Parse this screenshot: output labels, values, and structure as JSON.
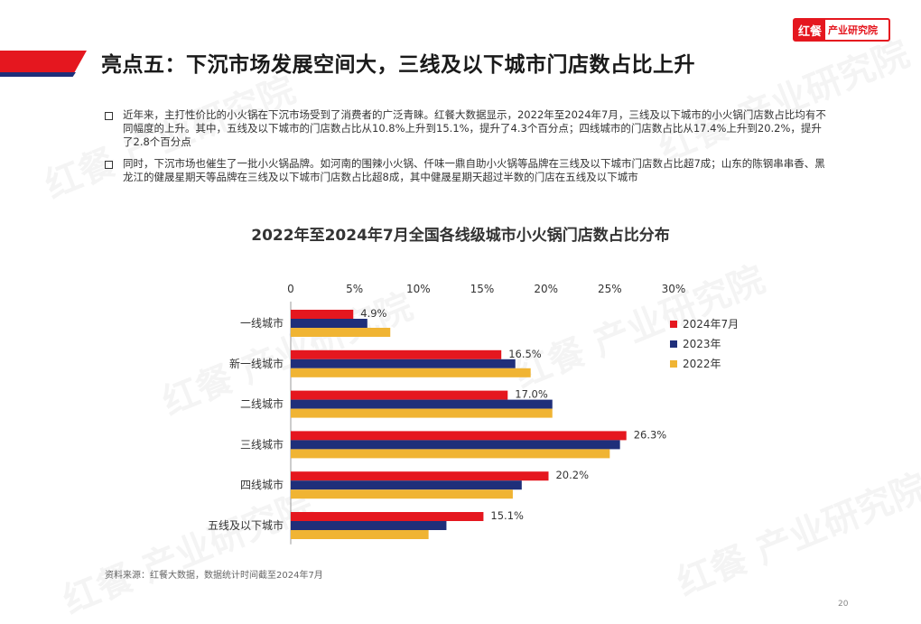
{
  "headline": "亮点五：下沉市场发展空间大，三线及以下城市门店数占比上升",
  "logo": {
    "mark": "红餐",
    "text": "产业研究院"
  },
  "watermark": "红餐 产业研究院",
  "bullets": [
    "近年来，主打性价比的小火锅在下沉市场受到了消费者的广泛青睐。红餐大数据显示，2022年至2024年7月，三线及以下城市的小火锅门店数占比均有不同幅度的上升。其中，五线及以下城市的门店数占比从10.8%上升到15.1%，提升了4.3个百分点；四线城市的门店数占比从17.4%上升到20.2%，提升了2.8个百分点",
    "同时，下沉市场也催生了一批小火锅品牌。如河南的围辣小火锅、仟味一鼎自助小火锅等品牌在三线及以下城市门店数占比超7成；山东的陈钢串串香、黑龙江的健晟星期天等品牌在三线及以下城市门店数占比超8成，其中健晟星期天超过半数的门店在五线及以下城市"
  ],
  "source": "资料来源：红餐大数据，数据统计时间截至2024年7月",
  "page_number": "20",
  "chart_data": {
    "type": "bar",
    "orientation": "horizontal",
    "title": "2022年至2024年7月全国各线级城市小火锅门店数占比分布",
    "categories": [
      "一线城市",
      "新一线城市",
      "二线城市",
      "三线城市",
      "四线城市",
      "五线及以下城市"
    ],
    "series": [
      {
        "name": "2024年7月",
        "values": [
          4.9,
          16.5,
          17.0,
          26.3,
          20.2,
          15.1
        ],
        "color": "#e5171f",
        "labels": [
          "4.9%",
          "16.5%",
          "17.0%",
          "26.3%",
          "20.2%",
          "15.1%"
        ]
      },
      {
        "name": "2023年",
        "values": [
          6.0,
          17.6,
          20.5,
          25.8,
          18.1,
          12.2
        ],
        "color": "#1f2f7a"
      },
      {
        "name": "2022年",
        "values": [
          7.8,
          18.8,
          20.5,
          25.0,
          17.4,
          10.8
        ],
        "color": "#f0b433"
      }
    ],
    "xlim": [
      0,
      30
    ],
    "xticks": [
      "0",
      "5%",
      "10%",
      "15%",
      "20%",
      "25%",
      "30%"
    ],
    "legend_position": "right",
    "grid": false
  }
}
